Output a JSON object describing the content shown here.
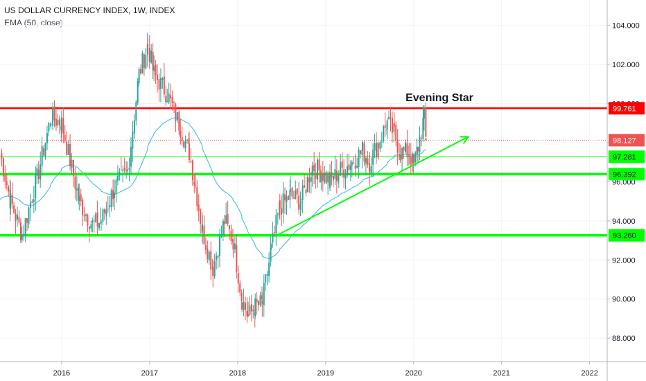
{
  "header": {
    "title": "US DOLLAR CURRENCY INDEX, 1W, INDEX",
    "indicator": "EMA (50, close)"
  },
  "colors": {
    "up": "#26a69a",
    "down": "#ef5350",
    "ema": "#4fc3d9",
    "resistance": "#ff0000",
    "support": "#00ff00",
    "trendline": "#00ff00"
  },
  "chart_data": {
    "type": "candlestick",
    "x_tick_labels": [
      "2016",
      "2017",
      "2018",
      "2019",
      "2020",
      "2021",
      "2022"
    ],
    "y_tick_labels": [
      "88.000",
      "90.000",
      "92.000",
      "94.000",
      "96.000",
      "98.000",
      "100.000",
      "102.000",
      "104.000"
    ],
    "ylim": [
      86.8,
      105.3
    ],
    "xlim": [
      2015.3,
      2022.2
    ],
    "annotation": "Evening Star",
    "price_levels": [
      {
        "label": "99.761",
        "value": 99.761,
        "kind": "resistance"
      },
      {
        "label": "98.127",
        "value": 98.127,
        "kind": "last-price"
      },
      {
        "label": "97.281",
        "value": 97.281,
        "kind": "support"
      },
      {
        "label": "96.392",
        "value": 96.392,
        "kind": "support"
      },
      {
        "label": "93.260",
        "value": 93.26,
        "kind": "support"
      }
    ],
    "trendline": {
      "from": [
        2018.42,
        93.2
      ],
      "to": [
        2020.62,
        98.3
      ]
    },
    "anchors": [
      [
        2015.3,
        97.5
      ],
      [
        2015.42,
        95.0
      ],
      [
        2015.55,
        93.3
      ],
      [
        2015.72,
        96.2
      ],
      [
        2015.88,
        99.3
      ],
      [
        2016.0,
        99.0
      ],
      [
        2016.2,
        95.0
      ],
      [
        2016.35,
        93.8
      ],
      [
        2016.45,
        94.0
      ],
      [
        2016.6,
        95.7
      ],
      [
        2016.75,
        96.5
      ],
      [
        2016.88,
        101.5
      ],
      [
        2016.98,
        103.0
      ],
      [
        2017.05,
        101.5
      ],
      [
        2017.2,
        100.5
      ],
      [
        2017.35,
        98.8
      ],
      [
        2017.45,
        97.5
      ],
      [
        2017.52,
        95.8
      ],
      [
        2017.6,
        93.5
      ],
      [
        2017.72,
        91.6
      ],
      [
        2017.85,
        94.0
      ],
      [
        2017.95,
        93.0
      ],
      [
        2018.05,
        90.0
      ],
      [
        2018.12,
        89.1
      ],
      [
        2018.2,
        89.6
      ],
      [
        2018.28,
        89.8
      ],
      [
        2018.38,
        92.5
      ],
      [
        2018.48,
        94.7
      ],
      [
        2018.6,
        95.3
      ],
      [
        2018.72,
        95.0
      ],
      [
        2018.85,
        96.8
      ],
      [
        2018.95,
        96.5
      ],
      [
        2019.05,
        96.0
      ],
      [
        2019.15,
        96.5
      ],
      [
        2019.3,
        97.0
      ],
      [
        2019.42,
        97.6
      ],
      [
        2019.5,
        97.0
      ],
      [
        2019.6,
        98.0
      ],
      [
        2019.7,
        99.0
      ],
      [
        2019.78,
        98.5
      ],
      [
        2019.85,
        97.5
      ],
      [
        2019.95,
        97.5
      ],
      [
        2020.0,
        96.8
      ],
      [
        2020.05,
        97.8
      ],
      [
        2020.12,
        99.3
      ],
      [
        2020.14,
        98.127
      ]
    ]
  }
}
